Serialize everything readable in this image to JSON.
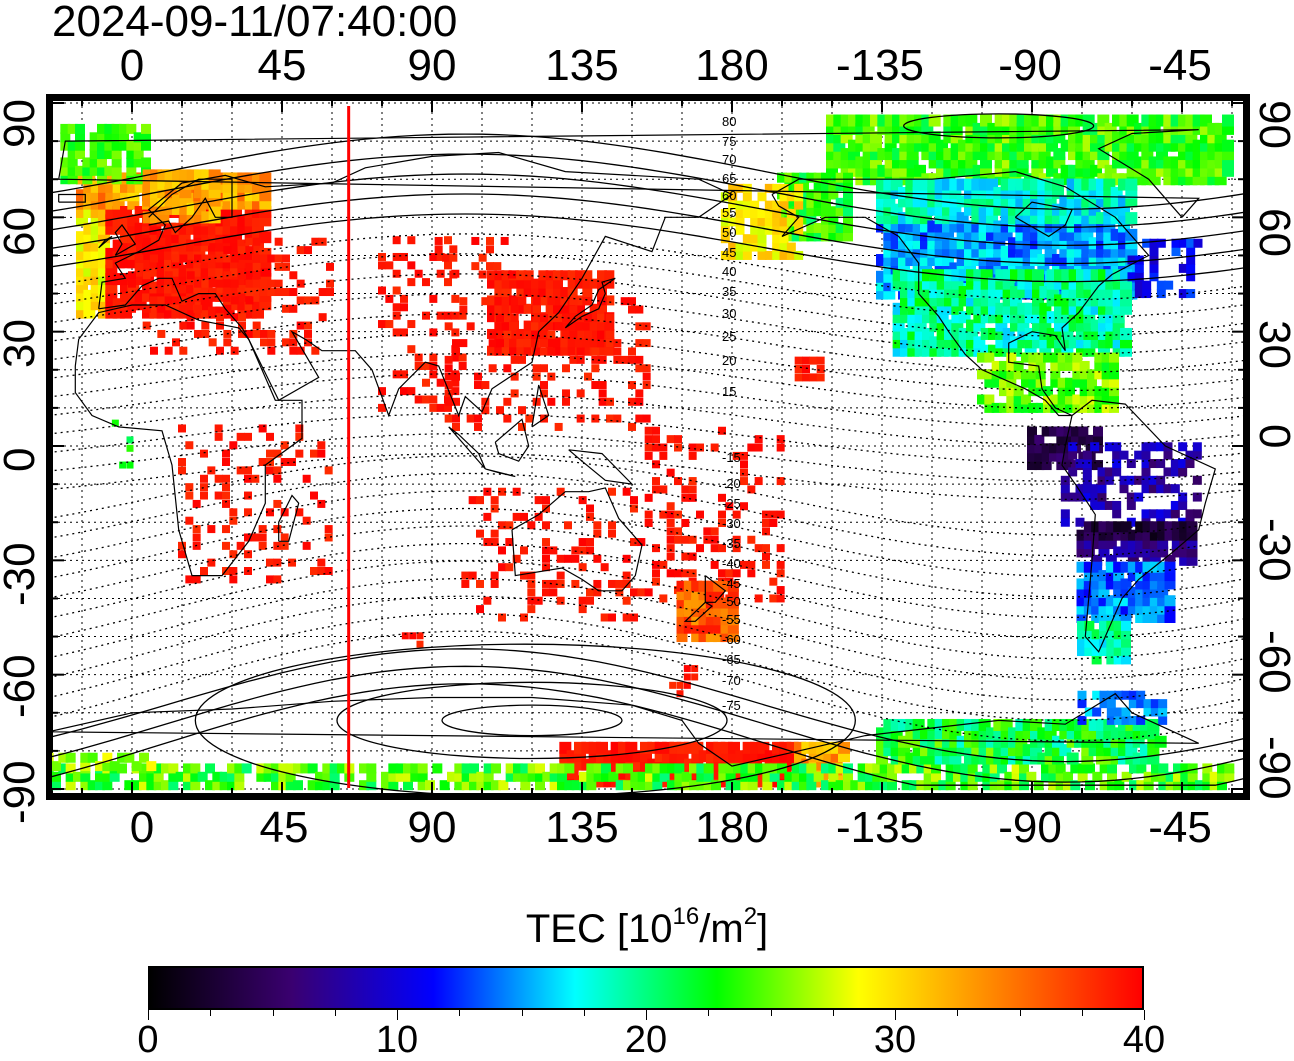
{
  "title": "2024-09-11/07:40:00",
  "map": {
    "top_lon_ticks": [
      "0",
      "45",
      "90",
      "135",
      "180",
      "-135",
      "-90",
      "-45"
    ],
    "bottom_lon_ticks": [
      "0",
      "45",
      "90",
      "135",
      "180",
      "-135",
      "-90",
      "-45"
    ],
    "left_lat_ticks": [
      "90",
      "60",
      "30",
      "0",
      "-30",
      "-60",
      "-90"
    ],
    "right_lat_ticks": [
      "90",
      "60",
      "30",
      "0",
      "-30",
      "-60",
      "-90"
    ],
    "contour_labels": [
      "80",
      "75",
      "70",
      "65",
      "60",
      "55",
      "50",
      "45",
      "40",
      "35",
      "30",
      "25",
      "20",
      "15",
      "-15",
      "-20",
      "-25",
      "-30",
      "-35",
      "-40",
      "-45",
      "-50",
      "-55",
      "-60",
      "-65",
      "-70",
      "-75"
    ],
    "terminator_longitude": 65
  },
  "colorbar": {
    "title_main": "TEC  [10",
    "title_sup1": "16",
    "title_mid": "/m",
    "title_sup2": "2",
    "title_end": "]",
    "min": 0,
    "max": 40,
    "ticks": [
      "0",
      "10",
      "20",
      "30",
      "40"
    ],
    "colors": [
      "#000000",
      "#3a0070",
      "#0000ff",
      "#00ffff",
      "#00ff00",
      "#ffff00",
      "#ff8000",
      "#ff0000"
    ]
  },
  "regions": [
    {
      "name": "europe",
      "tec": 40
    },
    {
      "name": "east-asia",
      "tec": 40
    },
    {
      "name": "north-america",
      "tec": 14
    },
    {
      "name": "south-america",
      "tec": 6
    },
    {
      "name": "new-zealand",
      "tec": 36
    },
    {
      "name": "antarctica",
      "tec": 22
    }
  ]
}
